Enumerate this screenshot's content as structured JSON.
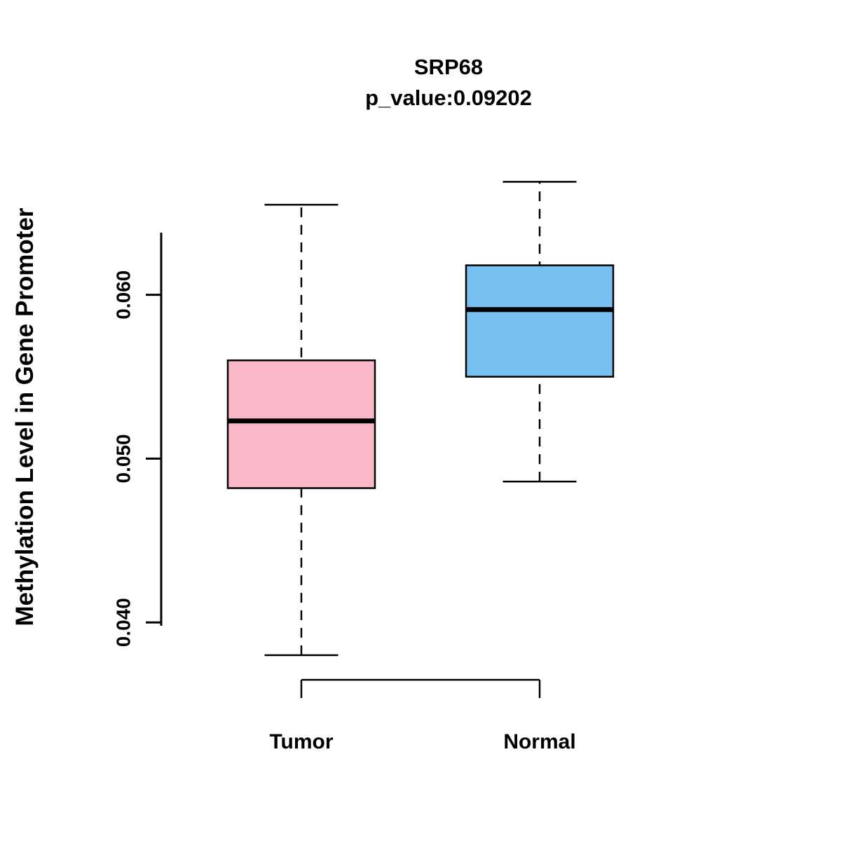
{
  "chart_data": {
    "type": "boxplot",
    "title": "SRP68",
    "subtitle": "p_value:0.09202",
    "ylabel": "Methylation Level in Gene Promoter",
    "xlabel": "",
    "ytick_labels": [
      "0.040",
      "0.050",
      "0.060"
    ],
    "ytick_values": [
      0.04,
      0.05,
      0.06
    ],
    "ylim": [
      0.0365,
      0.0673
    ],
    "axis_line_range": [
      0.0398,
      0.0638
    ],
    "grid": "off",
    "legend": "none",
    "colors": {
      "tumor_fill": "#F9B7C8",
      "normal_fill": "#79C0F2",
      "stroke": "#000000"
    },
    "groups": [
      {
        "label": "Tumor",
        "fill_color": "#F9B7C8",
        "whisker_low": 0.038,
        "q1": 0.0482,
        "median": 0.0523,
        "q3": 0.056,
        "whisker_high": 0.0655
      },
      {
        "label": "Normal",
        "fill_color": "#79C0F2",
        "whisker_low": 0.0486,
        "q1": 0.055,
        "median": 0.0591,
        "q3": 0.0618,
        "whisker_high": 0.0669
      }
    ]
  }
}
